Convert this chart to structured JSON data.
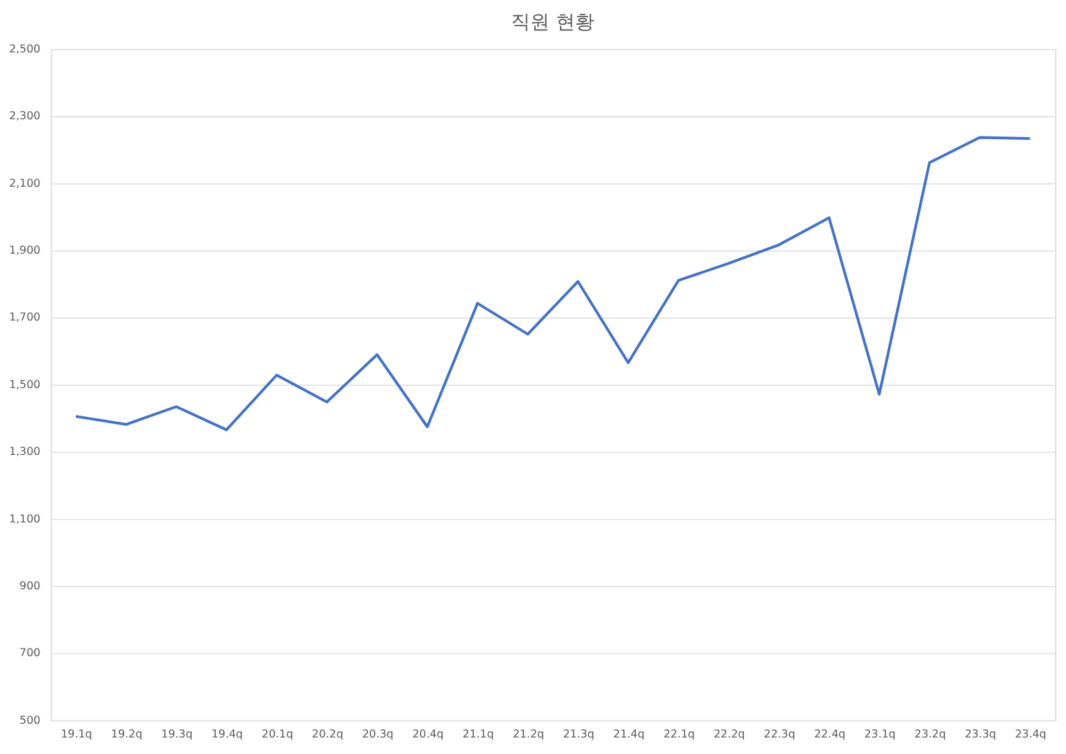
{
  "chart_data": {
    "type": "line",
    "title": "직원 현황",
    "categories": [
      "19.1q",
      "19.2q",
      "19.3q",
      "19.4q",
      "20.1q",
      "20.2q",
      "20.3q",
      "20.4q",
      "21.1q",
      "21.2q",
      "21.3q",
      "21.4q",
      "22.1q",
      "22.2q",
      "22.3q",
      "22.4q",
      "23.1q",
      "23.2q",
      "23.3q",
      "23.4q"
    ],
    "series": [
      {
        "color": "#4472c4",
        "values": [
          1405,
          1381,
          1434,
          1365,
          1528,
          1448,
          1589,
          1374,
          1742,
          1650,
          1807,
          1565,
          1810,
          1861,
          1916,
          1997,
          1471,
          2161,
          2236,
          2233
        ]
      }
    ],
    "ylim": [
      500,
      2500
    ],
    "yticks": [
      {
        "value": 500,
        "label": "500"
      },
      {
        "value": 700,
        "label": "700"
      },
      {
        "value": 900,
        "label": "900"
      },
      {
        "value": 1100,
        "label": "1,100"
      },
      {
        "value": 1300,
        "label": "1,300"
      },
      {
        "value": 1500,
        "label": "1,500"
      },
      {
        "value": 1700,
        "label": "1,700"
      },
      {
        "value": 1900,
        "label": "1,900"
      },
      {
        "value": 2100,
        "label": "2,100"
      },
      {
        "value": 2300,
        "label": "2,300"
      },
      {
        "value": 2500,
        "label": "2,500"
      }
    ],
    "grid": "y",
    "marker": "none",
    "line_style": "solid"
  }
}
